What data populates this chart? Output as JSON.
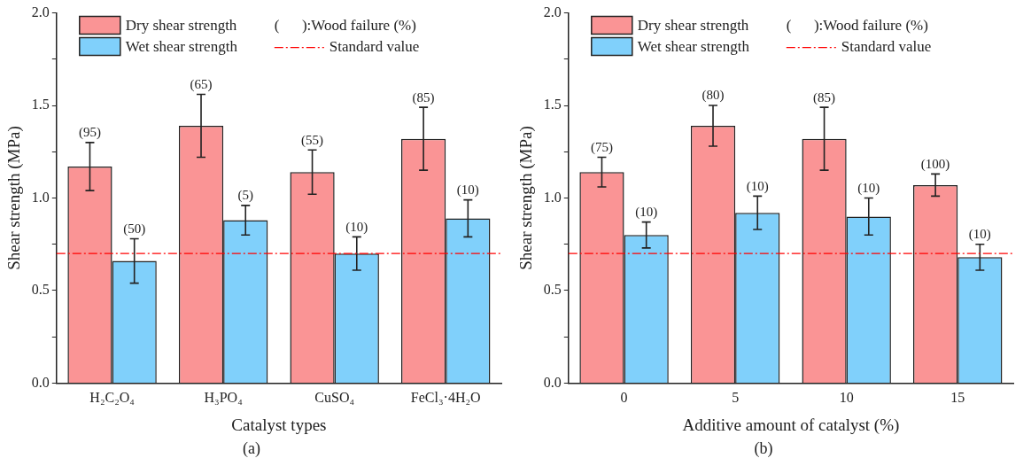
{
  "chart_data": [
    {
      "type": "bar",
      "title": "(a)",
      "xlabel": "Catalyst types",
      "ylabel": "Shear strength (MPa)",
      "categories": [
        "H₂C₂O₄",
        "H₃PO₄",
        "CuSO₄",
        "FeCl₃·4H₂O"
      ],
      "series": [
        {
          "name": "Dry shear strength",
          "color": "#fa9495",
          "values": [
            1.17,
            1.39,
            1.14,
            1.32
          ],
          "errors": [
            0.13,
            0.17,
            0.12,
            0.17
          ]
        },
        {
          "name": "Wet shear strength",
          "color": "#80d0fb",
          "values": [
            0.66,
            0.88,
            0.7,
            0.89
          ],
          "errors": [
            0.12,
            0.08,
            0.09,
            0.1
          ]
        }
      ],
      "ylim": [
        0,
        2
      ],
      "yticks": [
        {
          "value": 0,
          "label": "0.0"
        },
        {
          "value": 0.25,
          "label": null
        },
        {
          "value": 0.5,
          "label": "0.5"
        },
        {
          "value": 0.75,
          "label": null
        },
        {
          "value": 1,
          "label": "1.0"
        },
        {
          "value": 1.25,
          "label": null
        },
        {
          "value": 1.5,
          "label": "1.5"
        },
        {
          "value": 1.75,
          "label": null
        },
        {
          "value": 2,
          "label": "2.0"
        }
      ],
      "ref_lines": [
        {
          "axis": "y",
          "value": 0.7,
          "label": "Standard value",
          "color": "#ff0000",
          "line_style": "dashed"
        }
      ],
      "annotations": [
        "(      ):Wood failure (%)",
        {
          "text": "(95)",
          "x": "H₂C₂O₄",
          "y": 1.17
        },
        {
          "text": "(50)",
          "x": "H₂C₂O₄",
          "y": 0.66
        },
        {
          "text": "(65)",
          "x": "H₃PO₄",
          "y": 1.39
        },
        {
          "text": "(5)",
          "x": "H₃PO₄",
          "y": 0.88
        },
        {
          "text": "(55)",
          "x": "CuSO₄",
          "y": 1.14
        },
        {
          "text": "(10)",
          "x": "CuSO₄",
          "y": 0.7
        },
        {
          "text": "(85)",
          "x": "FeCl₃·4H₂O",
          "y": 1.32
        },
        {
          "text": "(10)",
          "x": "FeCl₃·4H₂O",
          "y": 0.89
        }
      ],
      "legend": "top",
      "grid": false
    },
    {
      "type": "bar",
      "title": "(b)",
      "xlabel": "Additive amount of catalyst (%)",
      "ylabel": "Shear strength (MPa)",
      "categories": [
        "0",
        "5",
        "10",
        "15"
      ],
      "series": [
        {
          "name": "Dry shear strength",
          "color": "#fa9495",
          "values": [
            1.14,
            1.39,
            1.32,
            1.07
          ],
          "errors": [
            0.08,
            0.11,
            0.17,
            0.06
          ]
        },
        {
          "name": "Wet shear strength",
          "color": "#80d0fb",
          "values": [
            0.8,
            0.92,
            0.9,
            0.68
          ],
          "errors": [
            0.07,
            0.09,
            0.1,
            0.07
          ]
        }
      ],
      "ylim": [
        0,
        2
      ],
      "yticks": [
        {
          "value": 0,
          "label": "0.0"
        },
        {
          "value": 0.25,
          "label": null
        },
        {
          "value": 0.5,
          "label": "0.5"
        },
        {
          "value": 0.75,
          "label": null
        },
        {
          "value": 1,
          "label": "1.0"
        },
        {
          "value": 1.25,
          "label": null
        },
        {
          "value": 1.5,
          "label": "1.5"
        },
        {
          "value": 1.75,
          "label": null
        },
        {
          "value": 2,
          "label": "2.0"
        }
      ],
      "ref_lines": [
        {
          "axis": "y",
          "value": 0.7,
          "label": "Standard value",
          "color": "#ff0000",
          "line_style": "dashed"
        }
      ],
      "annotations": [
        "(      ):Wood failure (%)",
        {
          "text": "(75)",
          "x": "0",
          "y": 1.14
        },
        {
          "text": "(10)",
          "x": "0",
          "y": 0.8
        },
        {
          "text": "(80)",
          "x": "5",
          "y": 1.39
        },
        {
          "text": "(10)",
          "x": "5",
          "y": 0.92
        },
        {
          "text": "(85)",
          "x": "10",
          "y": 1.32
        },
        {
          "text": "(10)",
          "x": "10",
          "y": 0.9
        },
        {
          "text": "(100)",
          "x": "15",
          "y": 1.07
        },
        {
          "text": "(10)",
          "x": "15",
          "y": 0.68
        }
      ],
      "legend": "top",
      "grid": false
    }
  ]
}
